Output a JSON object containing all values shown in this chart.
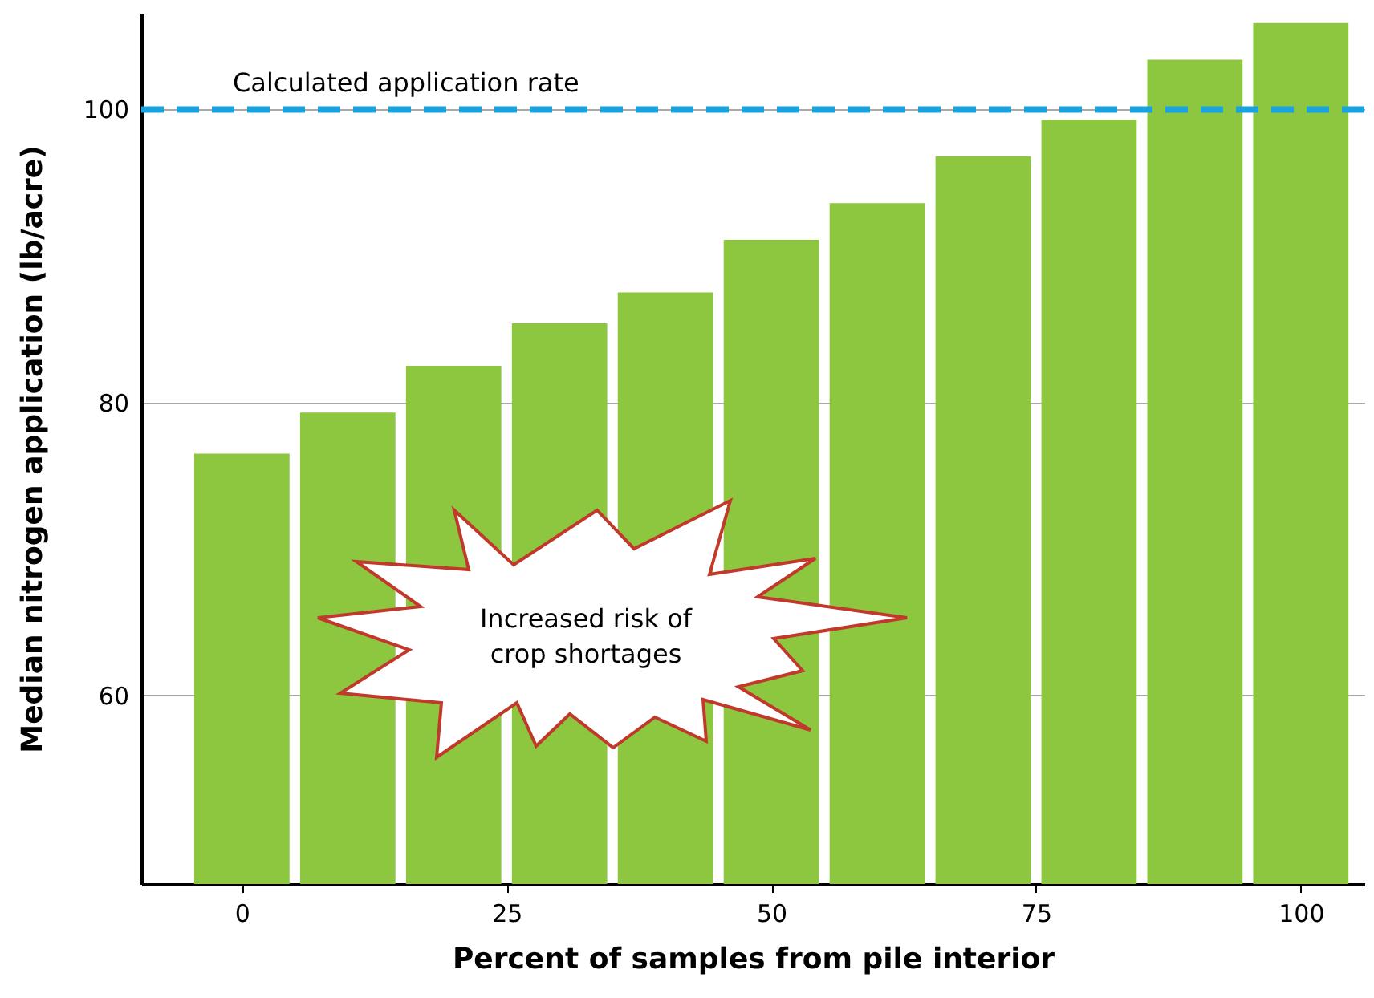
{
  "chart_data": {
    "type": "bar",
    "xlabel": "Percent of samples from pile interior",
    "ylabel": "Median nitrogen application (lb/acre)",
    "x": [
      0,
      10,
      20,
      30,
      40,
      50,
      60,
      70,
      80,
      90,
      100
    ],
    "values": [
      76.5,
      79.3,
      82.5,
      85.4,
      87.5,
      91.1,
      93.6,
      96.8,
      99.3,
      103.4,
      105.9
    ],
    "color": "#8dc63f",
    "xlim": [
      -9.5,
      106
    ],
    "xticks": [
      0,
      25,
      50,
      75,
      100
    ],
    "ylim": [
      47.1,
      106.6
    ],
    "yticks": [
      60,
      80,
      100
    ],
    "grid": "y",
    "ref_lines": [
      {
        "axis": "y",
        "value": 100,
        "label": "Calculated application rate",
        "color": "#1ba1db",
        "line_style": "dashed"
      }
    ],
    "annotations": [
      "Increased risk of crop shortages"
    ]
  }
}
